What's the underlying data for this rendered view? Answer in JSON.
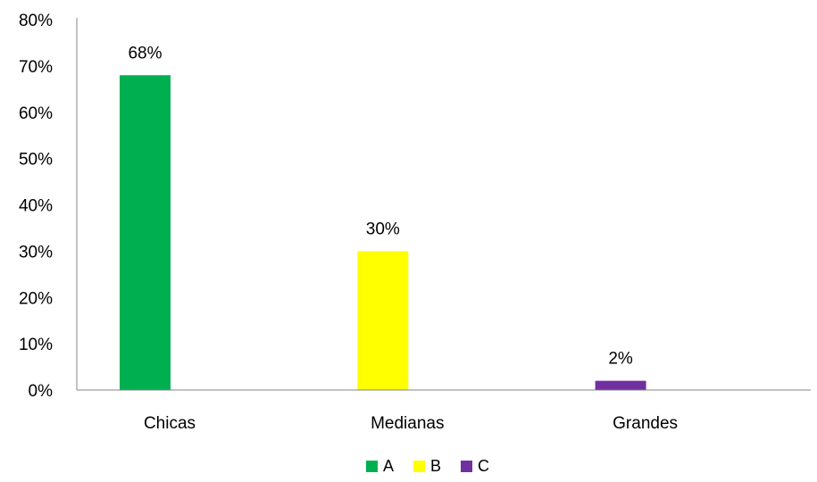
{
  "chart_data": {
    "type": "bar",
    "title": "",
    "xlabel": "",
    "ylabel": "",
    "ylim": [
      0,
      80
    ],
    "yticks": [
      0,
      10,
      20,
      30,
      40,
      50,
      60,
      70,
      80
    ],
    "ytick_suffix": "%",
    "grid": false,
    "legend_position": "bottom",
    "categories": [
      "Chicas",
      "Medianas",
      "Grandes"
    ],
    "series": [
      {
        "name": "A",
        "color": "#00b050",
        "values": [
          68,
          null,
          null
        ],
        "data_labels": [
          "68%",
          "",
          ""
        ]
      },
      {
        "name": "B",
        "color": "#ffff00",
        "values": [
          null,
          30,
          null
        ],
        "data_labels": [
          "",
          "30%",
          ""
        ]
      },
      {
        "name": "C",
        "color": "#7030a0",
        "values": [
          null,
          null,
          2
        ],
        "data_labels": [
          "",
          "",
          "2%"
        ]
      }
    ]
  }
}
